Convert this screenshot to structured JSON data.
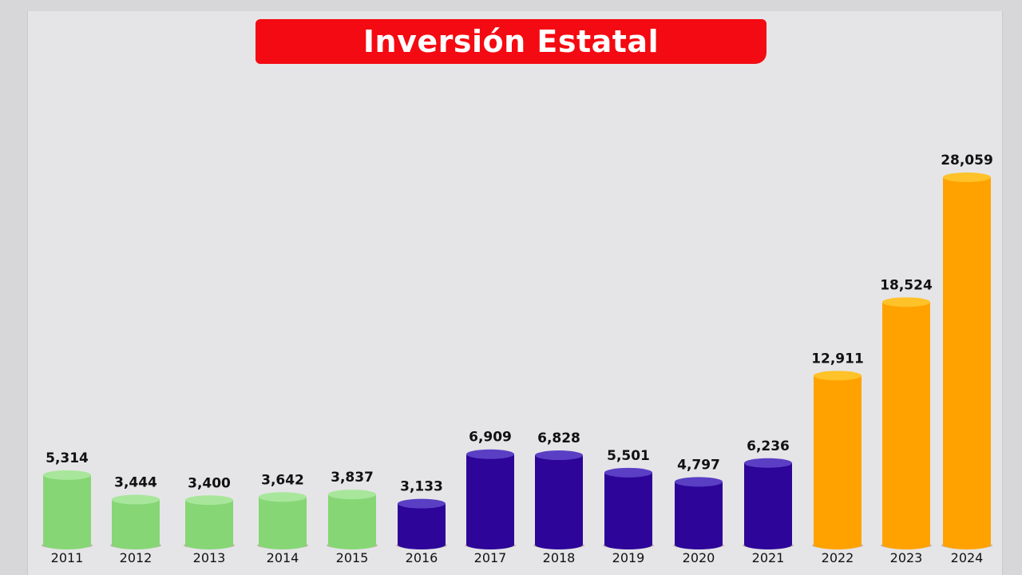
{
  "chart_data": {
    "type": "bar",
    "title": "Inversión Estatal",
    "xlabel": "",
    "ylabel": "",
    "ylim": [
      0,
      28059
    ],
    "grid": false,
    "legend": "none",
    "categories": [
      "2011",
      "2012",
      "2013",
      "2014",
      "2015",
      "2016",
      "2017",
      "2018",
      "2019",
      "2020",
      "2021",
      "2022",
      "2023",
      "2024"
    ],
    "values": [
      5314,
      3444,
      3400,
      3642,
      3837,
      3133,
      6909,
      6828,
      5501,
      4797,
      6236,
      12911,
      18524,
      28059
    ],
    "value_labels": [
      "5,314",
      "3,444",
      "3,400",
      "3,642",
      "3,837",
      "3,133",
      "6,909",
      "6,828",
      "5,501",
      "4,797",
      "6,236",
      "12,911",
      "18,524",
      "28,059"
    ],
    "bar_colors": [
      "#86d676",
      "#86d676",
      "#86d676",
      "#86d676",
      "#86d676",
      "#2d0599",
      "#2d0599",
      "#2d0599",
      "#2d0599",
      "#2d0599",
      "#2d0599",
      "#ffa200",
      "#ffa200",
      "#ffa200"
    ],
    "cap_colors": [
      "#a8e79b",
      "#a8e79b",
      "#a8e79b",
      "#a8e79b",
      "#a8e79b",
      "#5a3fc4",
      "#5a3fc4",
      "#5a3fc4",
      "#5a3fc4",
      "#5a3fc4",
      "#5a3fc4",
      "#ffc229",
      "#ffc229",
      "#ffc229"
    ]
  },
  "colors": {
    "title_banner": "#f40a12",
    "title_text": "#ffffff",
    "background": "#e5e5e7"
  }
}
